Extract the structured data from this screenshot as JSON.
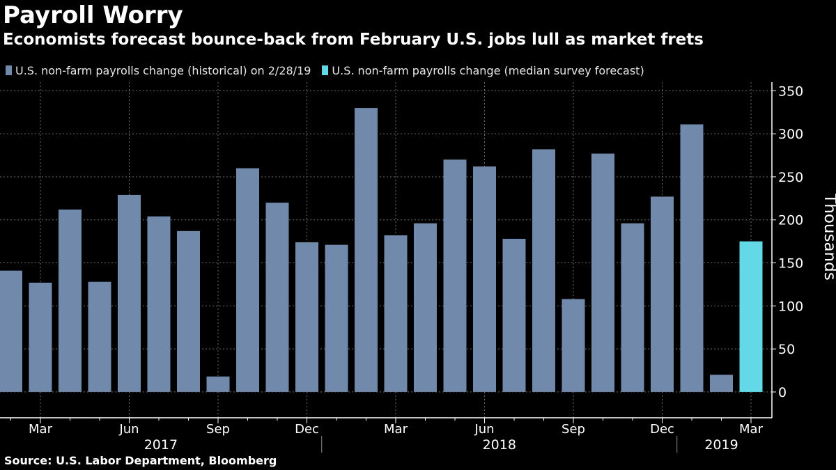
{
  "header": {
    "title": "Payroll Worry",
    "subtitle": "Economists forecast bounce-back from February U.S. jobs lull as market frets"
  },
  "legend": {
    "historical_label": "U.S. non-farm payrolls change (historical) on 2/28/19",
    "forecast_label": "U.S. non-farm payrolls change (median survey forecast)"
  },
  "footer": {
    "source": "Source: U.S. Labor Department, Bloomberg"
  },
  "colors": {
    "historical": "#7189aa",
    "forecast": "#63d8e6",
    "grid": "#6e6e6e",
    "background": "#000000"
  },
  "chart_data": {
    "type": "bar",
    "categories": [
      "2017-02",
      "2017-03",
      "2017-04",
      "2017-05",
      "2017-06",
      "2017-07",
      "2017-08",
      "2017-09",
      "2017-10",
      "2017-11",
      "2017-12",
      "2018-01",
      "2018-02",
      "2018-03",
      "2018-04",
      "2018-05",
      "2018-06",
      "2018-07",
      "2018-08",
      "2018-09",
      "2018-10",
      "2018-11",
      "2018-12",
      "2019-01",
      "2019-02",
      "2019-03"
    ],
    "series": [
      {
        "name": "U.S. non-farm payrolls change (historical) on 2/28/19",
        "values": [
          141,
          127,
          212,
          128,
          229,
          204,
          187,
          18,
          260,
          220,
          174,
          171,
          330,
          182,
          196,
          270,
          262,
          178,
          282,
          108,
          277,
          196,
          227,
          311,
          20,
          null
        ]
      },
      {
        "name": "U.S. non-farm payrolls change (median survey forecast)",
        "values": [
          null,
          null,
          null,
          null,
          null,
          null,
          null,
          null,
          null,
          null,
          null,
          null,
          null,
          null,
          null,
          null,
          null,
          null,
          null,
          null,
          null,
          null,
          null,
          null,
          null,
          175
        ]
      }
    ],
    "ylabel": "Thousands",
    "ylim": [
      -30,
      360
    ],
    "yticks": [
      0,
      50,
      100,
      150,
      200,
      250,
      300,
      350
    ],
    "xtick_labels": [
      {
        "index": 1,
        "label": "Mar"
      },
      {
        "index": 4,
        "label": "Jun"
      },
      {
        "index": 7,
        "label": "Sep"
      },
      {
        "index": 10,
        "label": "Dec"
      },
      {
        "index": 13,
        "label": "Mar"
      },
      {
        "index": 16,
        "label": "Jun"
      },
      {
        "index": 19,
        "label": "Sep"
      },
      {
        "index": 22,
        "label": "Dec"
      },
      {
        "index": 25,
        "label": "Mar"
      }
    ],
    "year_labels": [
      {
        "label": "2017",
        "first_index": 0,
        "last_index": 10
      },
      {
        "label": "2018",
        "first_index": 11,
        "last_index": 22
      },
      {
        "label": "2019",
        "first_index": 23,
        "last_index": 25
      }
    ],
    "grid": true,
    "legend_position": "top-left"
  }
}
